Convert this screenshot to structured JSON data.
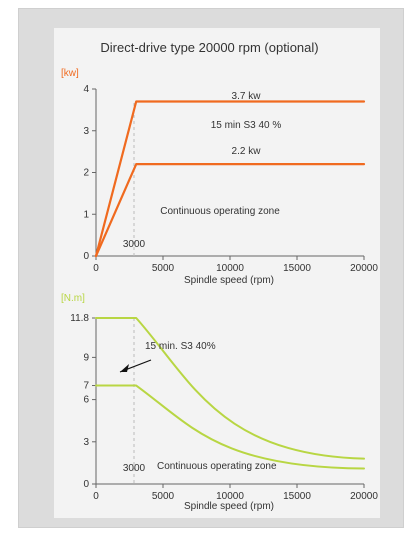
{
  "title": "Direct-drive type 20000 rpm (optional)",
  "chart_data": [
    {
      "type": "line",
      "ylabel": "[kw]",
      "xlabel": "Spindle speed (rpm)",
      "xlim": [
        0,
        20000
      ],
      "ylim": [
        0,
        4
      ],
      "x_ticks": [
        0,
        5000,
        10000,
        15000,
        20000
      ],
      "y_ticks": [
        0,
        1,
        2,
        3,
        4
      ],
      "series": [
        {
          "name": "3.7 kw",
          "points": [
            [
              0,
              0
            ],
            [
              3000,
              3.7
            ],
            [
              20000,
              3.7
            ]
          ]
        },
        {
          "name": "2.2 kw",
          "points": [
            [
              0,
              0
            ],
            [
              3000,
              2.2
            ],
            [
              20000,
              2.2
            ]
          ]
        }
      ],
      "annotations": [
        "3.7 kw",
        "15 min S3 40 %",
        "2.2 kw",
        "Continuous operating zone",
        "3000"
      ],
      "colors": {
        "line": "#f06a1f",
        "label": "#f06a1f"
      }
    },
    {
      "type": "line",
      "ylabel": "[N.m]",
      "xlabel": "Spindle speed (rpm)",
      "xlim": [
        0,
        20000
      ],
      "ylim": [
        0,
        11.8
      ],
      "x_ticks": [
        0,
        5000,
        10000,
        15000,
        20000
      ],
      "y_ticks": [
        0,
        3,
        6,
        7,
        9,
        11.8
      ],
      "series": [
        {
          "name": "15 min. S3 40%",
          "points": [
            [
              0,
              11.8
            ],
            [
              3000,
              11.8
            ],
            [
              20000,
              1.8
            ]
          ]
        },
        {
          "name": "Continuous operating zone",
          "points": [
            [
              0,
              7.0
            ],
            [
              3000,
              7.0
            ],
            [
              20000,
              1.1
            ]
          ]
        }
      ],
      "annotations": [
        "15 min. S3 40%",
        "3000",
        "Continuous operating zone"
      ],
      "colors": {
        "line": "#b8d643",
        "label": "#b8d643"
      }
    }
  ]
}
